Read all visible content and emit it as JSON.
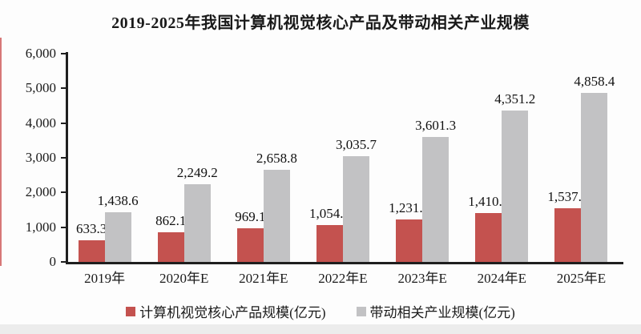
{
  "chart_data": {
    "type": "bar",
    "title": "2019-2025年我国计算机视觉核心产品及带动相关产业规模",
    "categories": [
      "2019年",
      "2020年E",
      "2021年E",
      "2022年E",
      "2023年E",
      "2024年E",
      "2025年E"
    ],
    "series": [
      {
        "name": "计算机视觉核心产品规模(亿元)",
        "color": "#C4524F",
        "values": [
          633.3,
          862.1,
          969.1,
          1054.1,
          1231.8,
          1410.2,
          1537.1
        ],
        "labels": [
          "633.3",
          "862.1",
          "969.1",
          "1,054.1",
          "1,231.8",
          "1,410.2",
          "1,537.1"
        ]
      },
      {
        "name": "带动相关产业规模(亿元)",
        "color": "#C2C2C4",
        "values": [
          1438.6,
          2249.2,
          2658.8,
          3035.7,
          3601.3,
          4351.2,
          4858.4
        ],
        "labels": [
          "1,438.6",
          "2,249.2",
          "2,658.8",
          "3,035.7",
          "3,601.3",
          "4,351.2",
          "4,858.4"
        ]
      }
    ],
    "xlabel": "",
    "ylabel": "",
    "ylim": [
      0,
      6000
    ],
    "ytick_step": 1000,
    "ytick_labels": [
      "0",
      "1,000",
      "2,000",
      "3,000",
      "4,000",
      "5,000",
      "6,000"
    ],
    "grid": false,
    "legend_position": "bottom",
    "axis_color": "#1f1f1f",
    "text_color": "#1a1a1a"
  }
}
